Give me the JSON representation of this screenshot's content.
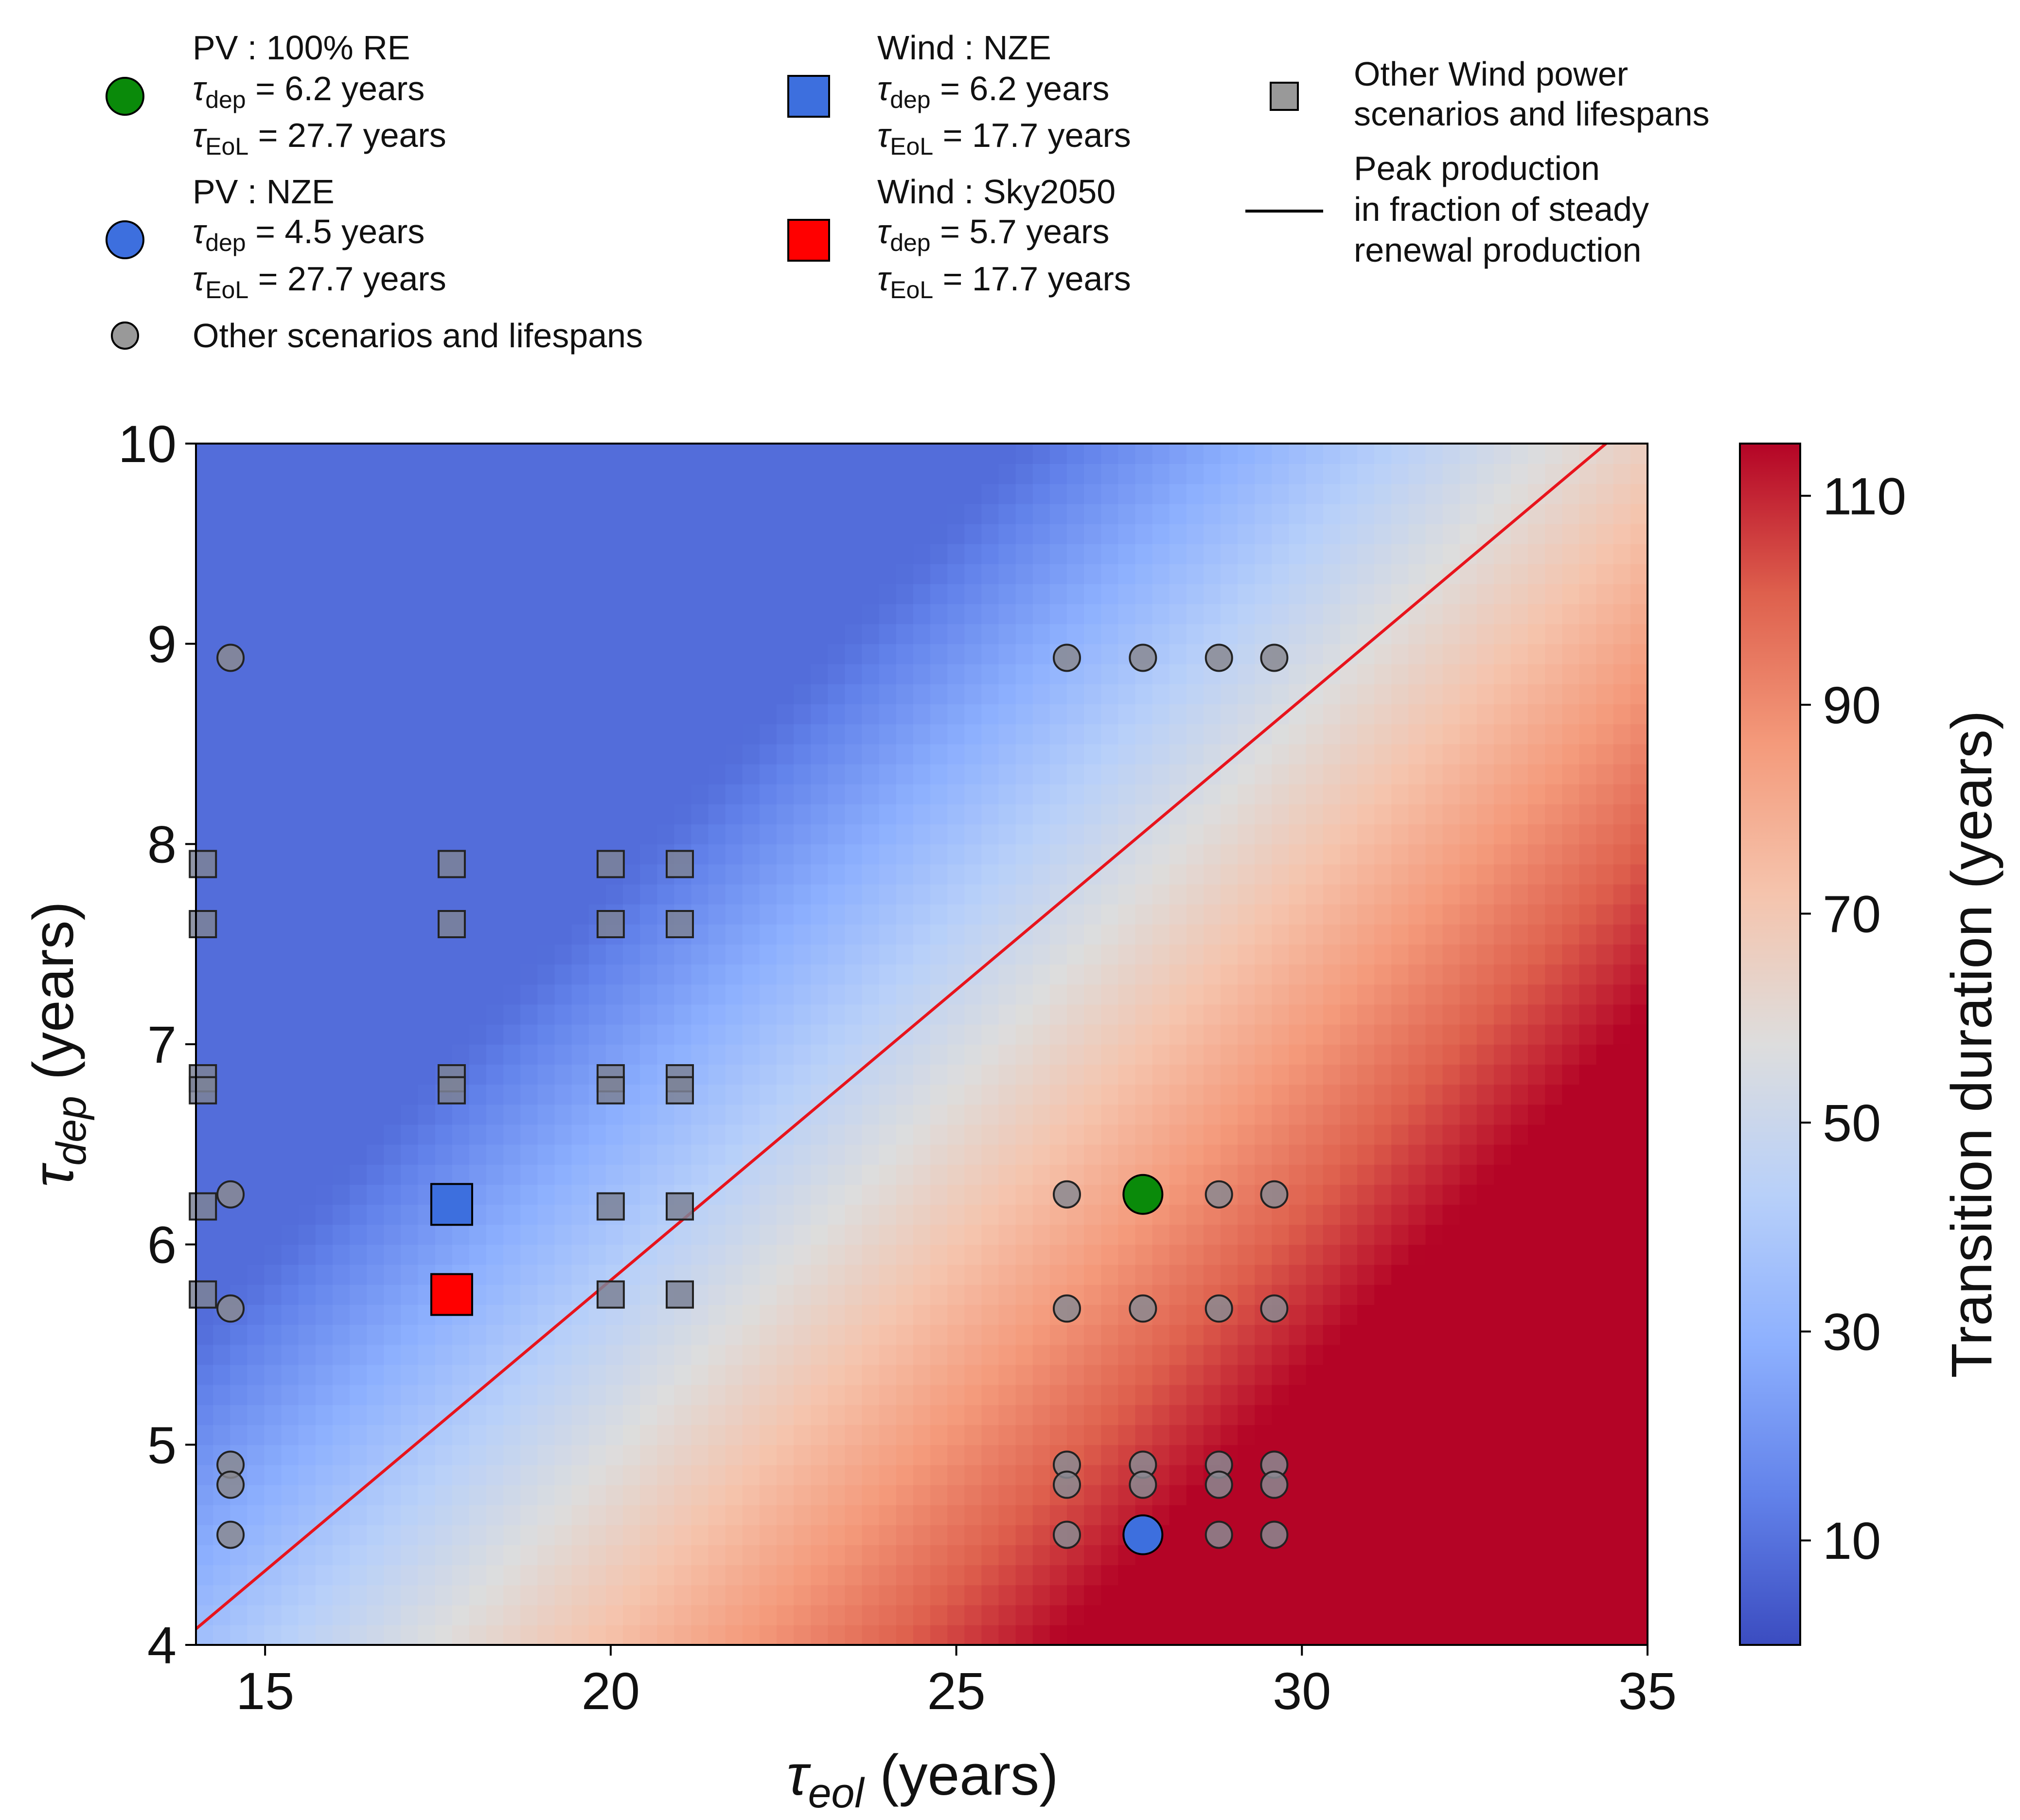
{
  "chart_data": {
    "type": "heatmap",
    "title": "",
    "xlabel": {
      "symbol": "τ",
      "subscript": "eol",
      "suffix": " (years)"
    },
    "ylabel": {
      "symbol": "τ",
      "subscript": "dep",
      "suffix": " (years)"
    },
    "xlim": [
      14,
      35
    ],
    "ylim": [
      4,
      10
    ],
    "x_ticks": [
      15,
      20,
      25,
      30,
      35
    ],
    "y_ticks": [
      4,
      5,
      6,
      7,
      8,
      9,
      10
    ],
    "grid": false,
    "colorbar": {
      "label": "Transition duration (years)",
      "range": [
        0,
        115
      ],
      "ticks": [
        10,
        30,
        50,
        70,
        90,
        110
      ],
      "colormap": "coolwarm"
    },
    "heatmap_model": {
      "description": "Approximate transition duration surface",
      "value_formula": "max(4, 6.4*(tau_eol - tau_dep*2.7) + 15)",
      "value_min": 2,
      "value_max": 115
    },
    "peak_line": {
      "name": "Peak production in fraction of steady renewal production",
      "color": "#e8141c",
      "points": [
        [
          14,
          4.08
        ],
        [
          34.4,
          10.0
        ]
      ]
    },
    "highlight_points": [
      {
        "name": "PV : 100% RE",
        "marker": "circle",
        "color": "#0a8a0a",
        "x": 27.7,
        "y": 6.25
      },
      {
        "name": "PV : NZE",
        "marker": "circle",
        "color": "#3d6fde",
        "x": 27.7,
        "y": 4.55
      },
      {
        "name": "Wind : NZE",
        "marker": "square",
        "color": "#3d6fde",
        "x": 17.7,
        "y": 6.2
      },
      {
        "name": "Wind : Sky2050",
        "marker": "square",
        "color": "#ff0000",
        "x": 17.7,
        "y": 5.75
      }
    ],
    "other_pv_points": [
      [
        14.5,
        8.93
      ],
      [
        26.6,
        8.93
      ],
      [
        27.7,
        8.93
      ],
      [
        28.8,
        8.93
      ],
      [
        29.6,
        8.93
      ],
      [
        14.5,
        6.25
      ],
      [
        26.6,
        6.25
      ],
      [
        28.8,
        6.25
      ],
      [
        29.6,
        6.25
      ],
      [
        14.5,
        5.68
      ],
      [
        26.6,
        5.68
      ],
      [
        27.7,
        5.68
      ],
      [
        28.8,
        5.68
      ],
      [
        29.6,
        5.68
      ],
      [
        14.5,
        4.9
      ],
      [
        26.6,
        4.9
      ],
      [
        27.7,
        4.9
      ],
      [
        28.8,
        4.9
      ],
      [
        29.6,
        4.9
      ],
      [
        14.5,
        4.8
      ],
      [
        26.6,
        4.8
      ],
      [
        27.7,
        4.8
      ],
      [
        28.8,
        4.8
      ],
      [
        29.6,
        4.8
      ],
      [
        14.5,
        4.55
      ],
      [
        26.6,
        4.55
      ],
      [
        28.8,
        4.55
      ],
      [
        29.6,
        4.55
      ]
    ],
    "other_wind_points": [
      [
        14.1,
        7.9
      ],
      [
        17.7,
        7.9
      ],
      [
        20.0,
        7.9
      ],
      [
        21.0,
        7.9
      ],
      [
        14.1,
        7.6
      ],
      [
        17.7,
        7.6
      ],
      [
        20.0,
        7.6
      ],
      [
        21.0,
        7.6
      ],
      [
        14.1,
        6.83
      ],
      [
        17.7,
        6.83
      ],
      [
        20.0,
        6.83
      ],
      [
        21.0,
        6.83
      ],
      [
        14.1,
        6.77
      ],
      [
        17.7,
        6.77
      ],
      [
        20.0,
        6.77
      ],
      [
        21.0,
        6.77
      ],
      [
        14.1,
        6.19
      ],
      [
        20.0,
        6.19
      ],
      [
        21.0,
        6.19
      ],
      [
        14.1,
        5.75
      ],
      [
        20.0,
        5.75
      ],
      [
        21.0,
        5.75
      ]
    ]
  },
  "legend": {
    "pv_100re": {
      "title": "PV : 100% RE",
      "dep_value": "6.2 years",
      "eol_value": "27.7 years"
    },
    "pv_nze": {
      "title": "PV : NZE",
      "dep_value": "4.5 years",
      "eol_value": "27.7 years"
    },
    "other_pv": {
      "title": "Other scenarios and lifespans"
    },
    "wind_nze": {
      "title": "Wind : NZE",
      "dep_value": "6.2 years",
      "eol_value": "17.7 years"
    },
    "wind_sky2050": {
      "title": "Wind : Sky2050",
      "dep_value": "5.7 years",
      "eol_value": "17.7 years"
    },
    "other_wind": {
      "line1": "Other Wind power",
      "line2": "scenarios and lifespans"
    },
    "peak_line": {
      "line1": "Peak production",
      "line2": "in fraction of steady",
      "line3": "renewal production"
    },
    "tau_symbol": "τ",
    "dep_sub": "dep",
    "eol_sub": "EoL",
    "equals": " = "
  }
}
